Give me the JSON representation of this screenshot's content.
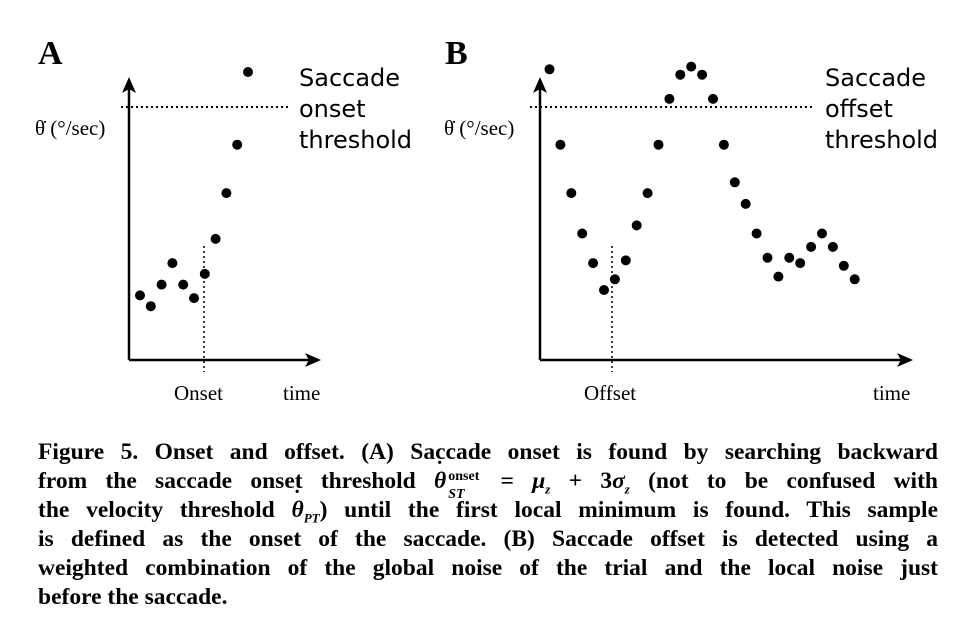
{
  "panel_a": {
    "letter": "A",
    "ylabel": "θ̇ (°/sec)",
    "threshold_text": [
      "Saccade",
      "onset",
      "threshold"
    ],
    "marker_label": "Onset",
    "xlabel": "time"
  },
  "panel_b": {
    "letter": "B",
    "ylabel": "θ̇ (°/sec)",
    "threshold_text": [
      "Saccade",
      "offset",
      "threshold"
    ],
    "marker_label": "Offset",
    "xlabel": "time"
  },
  "chart_data": [
    {
      "type": "scatter",
      "title": "",
      "xlabel": "time",
      "ylabel": "θ̇ (°/sec)",
      "x": [
        1,
        2,
        3,
        4,
        5,
        6,
        7,
        8,
        9,
        10,
        11
      ],
      "y": [
        0.24,
        0.2,
        0.28,
        0.36,
        0.28,
        0.23,
        0.32,
        0.45,
        0.62,
        0.8,
        1.07
      ],
      "threshold": 0.97,
      "threshold_label": "Saccade onset threshold",
      "marker_x": 6,
      "marker_label": "Onset",
      "ylim": [
        0,
        1.2
      ],
      "xlim": [
        0,
        18
      ]
    },
    {
      "type": "scatter",
      "title": "",
      "xlabel": "time",
      "ylabel": "θ̇ (°/sec)",
      "x": [
        1,
        2,
        3,
        4,
        5,
        6,
        7,
        8,
        9,
        10,
        11,
        12,
        13,
        14,
        15,
        16,
        17,
        18,
        19,
        20,
        21,
        22,
        23,
        24,
        25,
        26,
        27,
        28,
        29
      ],
      "y": [
        1.08,
        0.8,
        0.62,
        0.47,
        0.36,
        0.26,
        0.3,
        0.37,
        0.5,
        0.62,
        0.8,
        0.97,
        1.06,
        1.09,
        1.06,
        0.97,
        0.8,
        0.66,
        0.58,
        0.47,
        0.38,
        0.31,
        0.38,
        0.36,
        0.42,
        0.47,
        0.42,
        0.35,
        0.3
      ],
      "threshold": 1.02,
      "threshold_label": "Saccade offset threshold",
      "marker_x": 6,
      "marker_label": "Offset",
      "ylim": [
        0,
        1.2
      ],
      "xlim": [
        0,
        35
      ]
    }
  ],
  "caption": {
    "lines": [
      "Figure 5. Onset and offset. (A) Saccade onset is found by searching backward",
      "from the saccade onset threshold θ̇ST^onset = μz + 3σz (not to be confused with",
      "the velocity threshold θ̇PT) until the first local minimum is found. This sample",
      "is defined as the onset of the saccade. (B) Saccade offset is detected using a",
      "weighted combination of the global noise of the trial and the local noise just",
      "before the saccade."
    ],
    "line1": "Figure 5. Onset and offset. (A) Saccade onset is found by searching backward",
    "line2_a": "from the saccade onset threshold ",
    "theta": "θ",
    "st_sub": "ST",
    "onset_sup": "onset",
    "line2_eq": " = ",
    "mu": "μ",
    "z1": "z",
    "plus3": " + 3",
    "sigma": "σ",
    "z2": "z",
    "line2_b": " (not to be confused with",
    "line3_a": "the velocity threshold ",
    "pt_sub": "PT",
    "line3_b": ") until the first local minimum is found. This sample",
    "line4": "is defined as the onset of the saccade. (B) Saccade offset is detected using a",
    "line5": "weighted combination of the global noise of the trial and the local noise just",
    "line6": "before the saccade."
  }
}
